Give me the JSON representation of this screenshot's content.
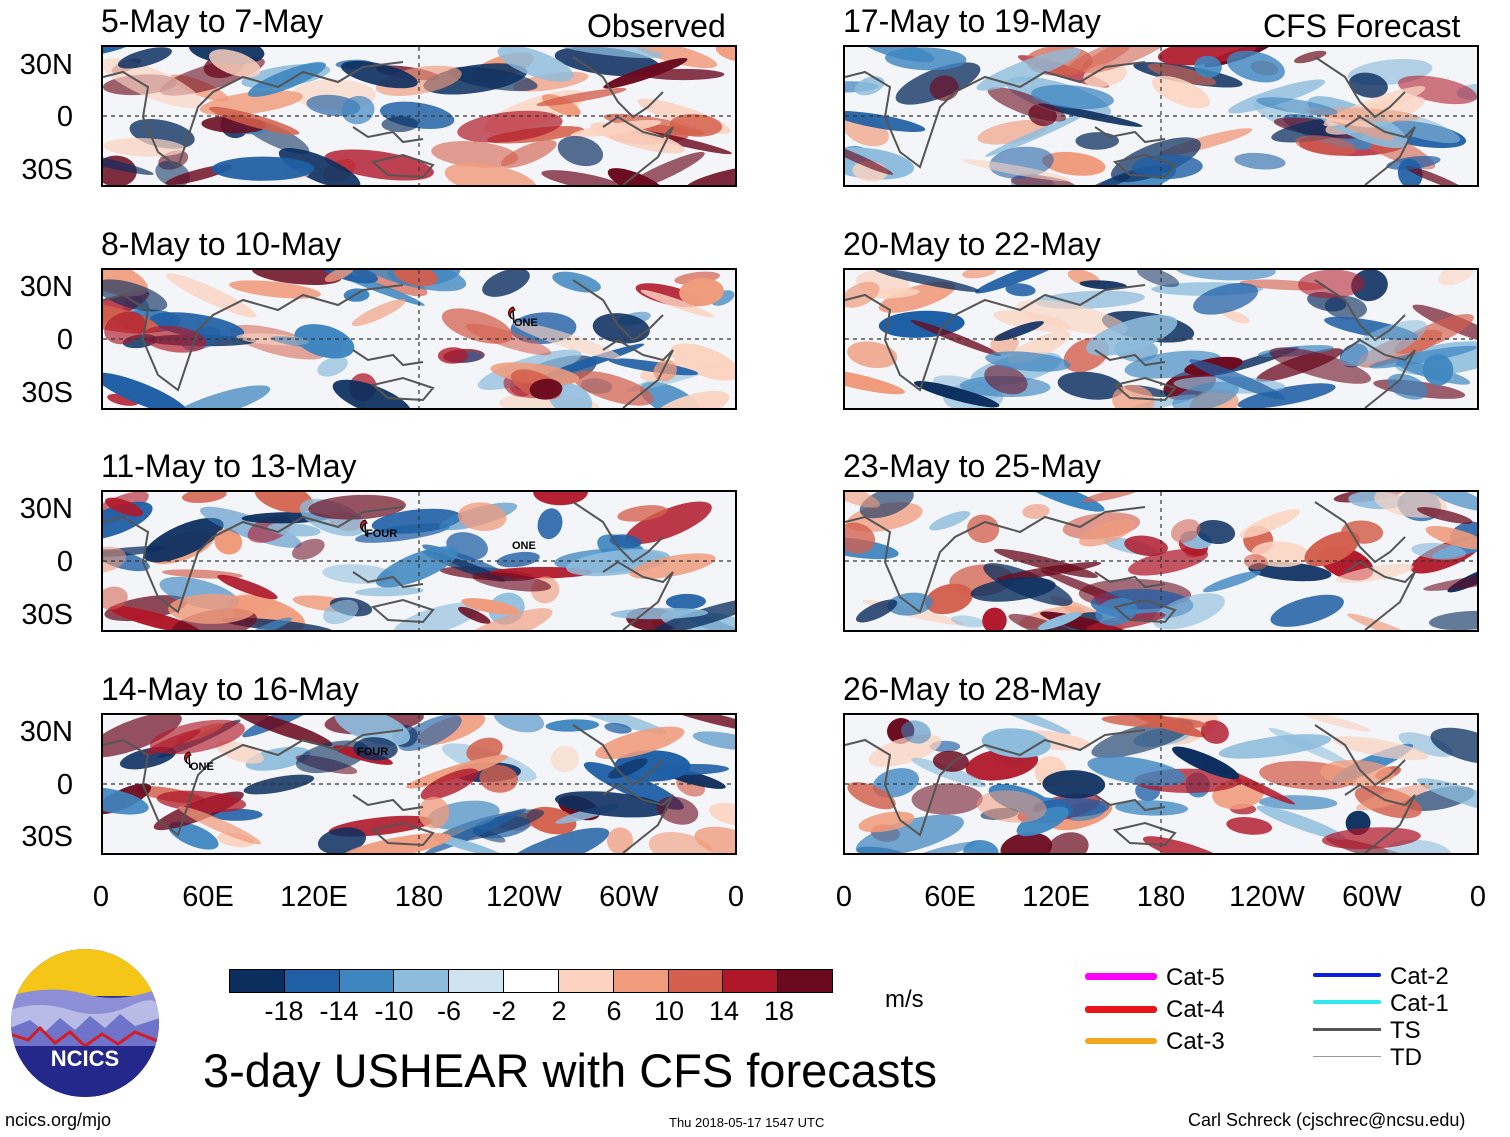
{
  "figure": {
    "title": "3-day USHEAR with CFS forecasts",
    "site": "ncics.org/mjo",
    "timestamp": "Thu 2018-05-17 1547 UTC",
    "author": "Carl Schreck (cjschrec@ncsu.edu)",
    "logo_text": "NCICS"
  },
  "columns": {
    "observed_label": "Observed",
    "forecast_label": "CFS Forecast"
  },
  "panels_observed": [
    {
      "title": "5-May to 7-May",
      "storms": []
    },
    {
      "title": "8-May to 10-May",
      "storms": [
        {
          "name": "ONE",
          "category": "Cat-4"
        }
      ]
    },
    {
      "title": "11-May to 13-May",
      "storms": [
        {
          "name": "FOUR",
          "category": "Cat-4"
        },
        {
          "name": "ONE",
          "category": "TD"
        }
      ]
    },
    {
      "title": "14-May to 16-May",
      "storms": [
        {
          "name": "FOUR",
          "category": "TD"
        },
        {
          "name": "ONE",
          "category": "Cat-4"
        }
      ]
    }
  ],
  "panels_forecast": [
    {
      "title": "17-May to 19-May"
    },
    {
      "title": "20-May to 22-May"
    },
    {
      "title": "23-May to 25-May"
    },
    {
      "title": "26-May to 28-May"
    }
  ],
  "lat_labels": [
    "30N",
    "0",
    "30S"
  ],
  "lon_labels": [
    "0",
    "60E",
    "120E",
    "180",
    "120W",
    "60W",
    "0"
  ],
  "colorbar": {
    "unit": "m/s",
    "ticks": [
      "-18",
      "-14",
      "-10",
      "-6",
      "-2",
      "2",
      "6",
      "10",
      "14",
      "18"
    ],
    "colors": [
      "#0b2e5f",
      "#1f5fa5",
      "#3e86c0",
      "#8dbcdc",
      "#cfe2ef",
      "#ffffff",
      "#fbd3c0",
      "#f09b7c",
      "#d35f4c",
      "#b0182a",
      "#6b0a1f"
    ]
  },
  "legend": {
    "items": [
      {
        "label": "Cat-5",
        "color": "#ff00ff"
      },
      {
        "label": "Cat-4",
        "color": "#e8141c"
      },
      {
        "label": "Cat-3",
        "color": "#f2a81e"
      },
      {
        "label": "Cat-2",
        "color": "#0b1fe0"
      },
      {
        "label": "Cat-1",
        "color": "#2fe8f0"
      },
      {
        "label": "TS",
        "color": "#555555"
      },
      {
        "label": "TD",
        "color": "#9a9a9a"
      }
    ]
  }
}
